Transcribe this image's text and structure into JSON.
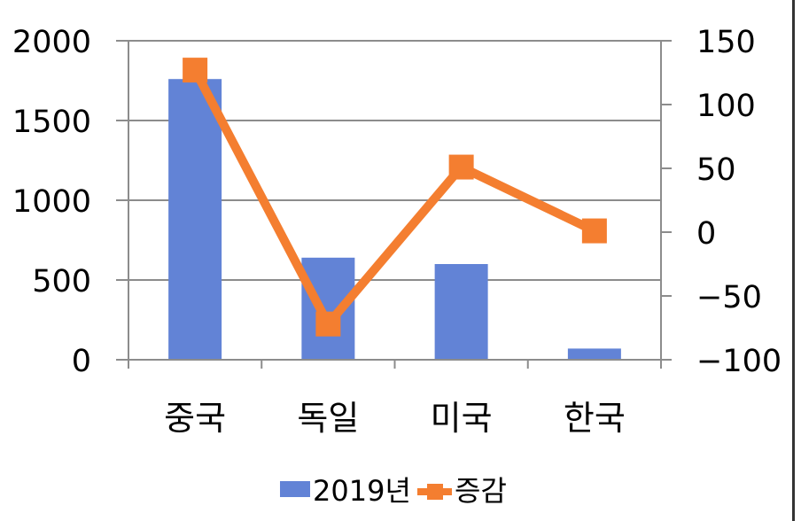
{
  "chart_data": {
    "type": "bar",
    "categories": [
      "중국",
      "독일",
      "미국",
      "한국"
    ],
    "series": [
      {
        "name": "2019년",
        "type": "bar",
        "axis": "left",
        "color": "#6283d6",
        "values": [
          1760,
          640,
          600,
          70
        ]
      },
      {
        "name": "증감",
        "type": "line",
        "axis": "right",
        "color": "#f47e30",
        "values": [
          127,
          -72,
          51,
          1
        ]
      }
    ],
    "ylim": [
      0,
      2000
    ],
    "yticks": [
      0,
      500,
      1000,
      1500,
      2000
    ],
    "ylim_right": [
      -100,
      150
    ],
    "yticks_right": [
      -100,
      -50,
      0,
      50,
      100,
      150
    ],
    "grid": true,
    "legend": "bottom"
  }
}
